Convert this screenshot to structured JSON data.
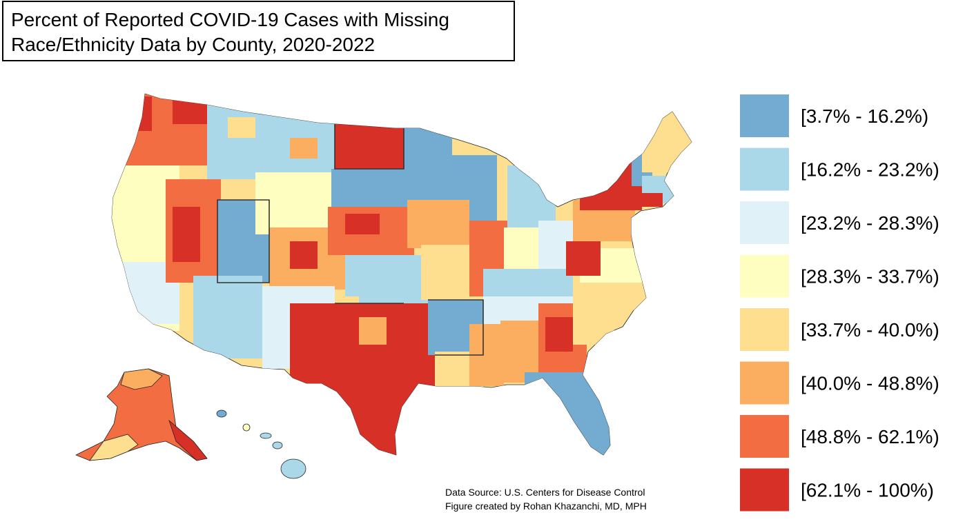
{
  "title_line1": "Percent of Reported COVID-19 Cases with Missing",
  "title_line2": "Race/Ethnicity Data by County, 2020-2022",
  "source_line1": "Data Source: U.S. Centers for Disease Control",
  "source_line2": "Figure created by Rohan Khazanchi, MD, MPH",
  "legend": [
    {
      "label": "[3.7% - 16.2%)",
      "color": "#74abd0"
    },
    {
      "label": "[16.2% - 23.2%)",
      "color": "#abd8e8"
    },
    {
      "label": "[23.2% - 28.3%)",
      "color": "#e0f2f8"
    },
    {
      "label": "[28.3% - 33.7%)",
      "color": "#fefec0"
    },
    {
      "label": "[33.7% - 40.0%)",
      "color": "#fede8f"
    },
    {
      "label": "[40.0% - 48.8%)",
      "color": "#fcae60"
    },
    {
      "label": "[48.8% - 62.1%)",
      "color": "#f36d42"
    },
    {
      "label": "[62.1% - 100%)",
      "color": "#d73027"
    }
  ]
}
